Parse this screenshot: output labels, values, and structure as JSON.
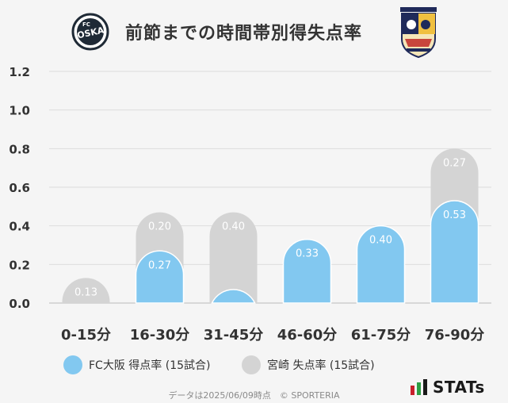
{
  "header": {
    "title": "前節までの時間帯別得失点率",
    "left_logo_text": "FC OSAKA",
    "right_logo_text": "TEGEVAJARO MIYAZAKI"
  },
  "chart_data": {
    "type": "bar",
    "title": "前節までの時間帯別得失点率",
    "categories": [
      "0-15分",
      "16-30分",
      "31-45分",
      "46-60分",
      "61-75分",
      "76-90分"
    ],
    "series": [
      {
        "name": "FC大阪 得点率 (15試合)",
        "values": [
          0.0,
          0.27,
          0.07,
          0.33,
          0.4,
          0.53
        ],
        "labels": [
          "",
          "0.27",
          "",
          "0.33",
          "0.40",
          "0.53"
        ],
        "color": "#82c8f0"
      },
      {
        "name": "宮崎 失点率 (15試合)",
        "values": [
          0.13,
          0.2,
          0.4,
          0.0,
          0.0,
          0.27
        ],
        "labels": [
          "0.13",
          "0.20",
          "0.40",
          "",
          "",
          "0.27"
        ],
        "color": "#d4d4d4"
      }
    ],
    "stacked": true,
    "yticks": [
      "0.0",
      "0.2",
      "0.4",
      "0.6",
      "0.8",
      "1.0",
      "1.2"
    ],
    "ylim": [
      0,
      1.2
    ],
    "grid": true,
    "legend": "bottom"
  },
  "legend": {
    "team1": "FC大阪 得点率 (15試合)",
    "team2": "宮崎 失点率 (15試合)"
  },
  "footer": {
    "note": "データは2025/06/09時点　© SPORTERIA",
    "brand": "STATs"
  },
  "colors": {
    "team1": "#82c8f0",
    "team2": "#d4d4d4",
    "text": "#333333"
  }
}
